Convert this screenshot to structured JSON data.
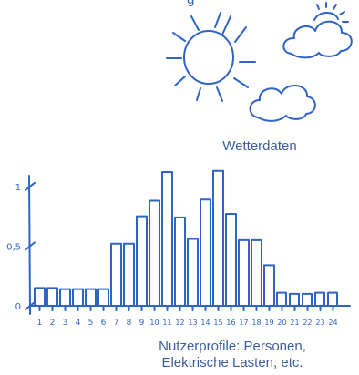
{
  "header": {
    "partial_text": "g"
  },
  "weather": {
    "caption": "Wetterdaten",
    "icons": [
      "sun-icon",
      "cloud-with-sun-icon",
      "cloud-icon"
    ]
  },
  "profiles": {
    "caption_line1": "Nutzerprofile: Personen,",
    "caption_line2": "Elektrische Lasten, etc."
  },
  "colors": {
    "ink": "#2f63c8",
    "caption": "#3b5f9a"
  },
  "chart_data": {
    "type": "bar",
    "categories": [
      "1",
      "2",
      "3",
      "4",
      "5",
      "6",
      "7",
      "8",
      "9",
      "10",
      "11",
      "12",
      "13",
      "14",
      "15",
      "16",
      "17",
      "18",
      "19",
      "20",
      "21",
      "22",
      "23",
      "24"
    ],
    "values": [
      0.15,
      0.15,
      0.14,
      0.14,
      0.14,
      0.14,
      0.52,
      0.52,
      0.75,
      0.88,
      1.12,
      0.74,
      0.56,
      0.89,
      1.13,
      0.77,
      0.55,
      0.55,
      0.34,
      0.11,
      0.1,
      0.1,
      0.11,
      0.11
    ],
    "y_ticks": [
      {
        "value": 0,
        "label": "0"
      },
      {
        "value": 0.5,
        "label": "0,5"
      },
      {
        "value": 1,
        "label": "1"
      }
    ],
    "ylim": [
      0,
      1.25
    ],
    "grid": false,
    "title": "",
    "xlabel": "",
    "ylabel": ""
  }
}
